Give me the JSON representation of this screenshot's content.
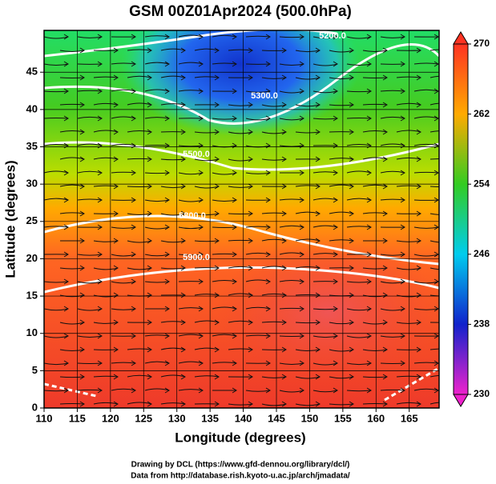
{
  "chart_data": {
    "type": "contour",
    "title": "GSM 00Z01Apr2024 (500.0hPa)",
    "x_label": "Longitude (degrees)",
    "y_label": "Latitude  (degrees)",
    "xlim": [
      110,
      169.5
    ],
    "xticks": [
      110,
      115,
      120,
      125,
      130,
      135,
      140,
      145,
      150,
      155,
      160,
      165
    ],
    "ylim": [
      0,
      50.6
    ],
    "yticks": [
      0,
      5,
      10,
      15,
      20,
      25,
      30,
      35,
      40,
      45
    ],
    "grid": true,
    "clim": [
      230,
      270
    ],
    "cticks": [
      230,
      238,
      246,
      254,
      262,
      270
    ],
    "contour_labels": [
      "5200.0",
      "5300.0",
      "5500.0",
      "5800.0",
      "5900.0"
    ],
    "credits": [
      "Drawing by DCL (https://www.gfd-dennou.org/library/dcl/)",
      "Data from http://database.rish.kyoto-u.ac.jp/arch/jmadata/"
    ]
  }
}
